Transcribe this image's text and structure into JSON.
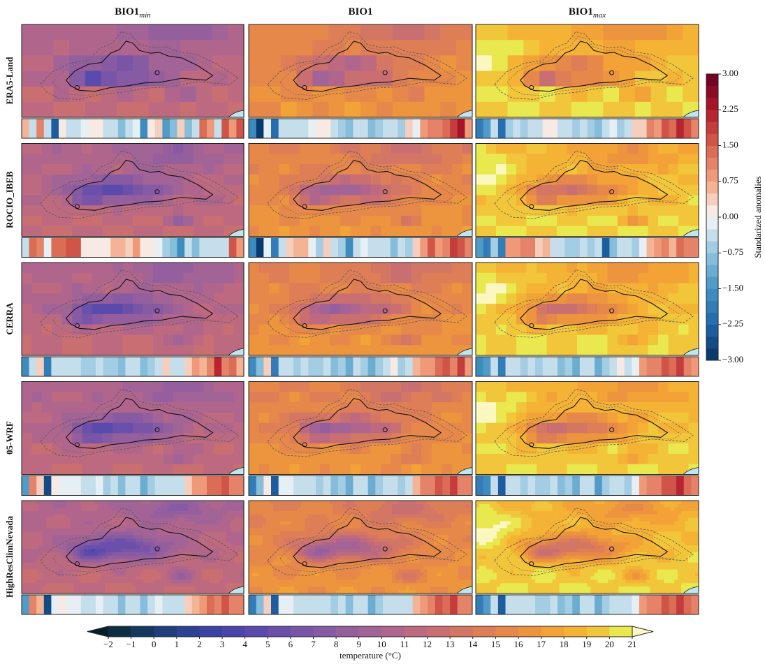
{
  "chart_data": {
    "type": "stripes-grid",
    "columns": [
      {
        "name": "BIO1",
        "subscript": "min"
      },
      {
        "name": "BIO1"
      },
      {
        "name": "BIO1",
        "subscript": "max"
      }
    ],
    "rows": [
      "ERA5-Land",
      "ROCIO_IBEB",
      "CERRA",
      "05-WRF",
      "HighResClimNevada"
    ],
    "panels": [
      [
        {
          "values": [
            0.6,
            -0.4,
            1.2,
            -0.3,
            -2.4,
            0.2,
            -0.3,
            -0.4,
            -0.2,
            0.1,
            0.1,
            -0.5,
            -0.3,
            -1.0,
            -0.4,
            -0.2,
            -1.6,
            0.2,
            0.3,
            -1.3,
            -0.8,
            0.4,
            -1.0,
            -0.4,
            1.4,
            0.9,
            -0.5,
            1.6,
            0.8,
            1.5
          ]
        },
        {
          "values": [
            -1.6,
            -2.8,
            -0.2,
            -2.1,
            -0.3,
            -0.5,
            -0.4,
            -0.3,
            -0.2,
            0.1,
            0.0,
            -0.3,
            -0.6,
            -0.8,
            -0.5,
            -0.4,
            -0.9,
            -0.7,
            -0.3,
            -0.5,
            -0.6,
            0.3,
            -0.2,
            0.8,
            1.2,
            1.0,
            1.4,
            1.8,
            2.3,
            0.9
          ]
        },
        {
          "values": [
            -2.0,
            -1.4,
            -0.5,
            -2.2,
            -0.6,
            -0.4,
            -0.6,
            -0.5,
            -0.3,
            0.2,
            0.1,
            -0.3,
            -0.5,
            -0.7,
            -0.4,
            -0.6,
            -1.0,
            -0.4,
            -0.2,
            -0.6,
            -0.3,
            0.4,
            0.3,
            1.1,
            0.9,
            1.5,
            1.3,
            2.0,
            1.7,
            1.2
          ]
        }
      ],
      [
        {
          "values": [
            -0.4,
            1.3,
            1.1,
            -0.2,
            1.3,
            1.3,
            1.5,
            1.5,
            0.1,
            0.1,
            0.1,
            0.1,
            0.6,
            0.5,
            0.3,
            0.9,
            0.1,
            0.2,
            -0.2,
            -0.6,
            -0.8,
            -1.6,
            -0.3,
            -0.8,
            -0.4,
            -0.3,
            -0.5,
            -0.3,
            1.6,
            0.9
          ]
        },
        {
          "values": [
            -1.7,
            -3.0,
            -0.2,
            -1.9,
            -0.4,
            0.4,
            0.6,
            0.5,
            -0.2,
            -0.6,
            0.3,
            -0.3,
            -0.7,
            -1.7,
            -0.4,
            -0.2,
            -0.3,
            -0.3,
            -0.5,
            -0.9,
            -0.5,
            -0.6,
            0.3,
            0.8,
            1.5,
            0.9,
            1.1,
            1.8,
            1.6,
            1.1
          ]
        },
        {
          "values": [
            -1.5,
            -1.8,
            -0.6,
            -1.9,
            0.8,
            0.9,
            1.1,
            1.1,
            0.3,
            0.6,
            -0.4,
            -0.4,
            -0.6,
            -0.7,
            -0.5,
            -0.6,
            -0.5,
            -2.3,
            -0.9,
            -0.5,
            -0.3,
            -0.7,
            -0.2,
            0.6,
            0.9,
            1.2,
            0.5,
            1.4,
            1.2,
            1.0
          ]
        }
      ],
      [
        {
          "values": [
            -1.6,
            -0.5,
            0.4,
            -1.8,
            -0.3,
            -0.3,
            -0.5,
            -0.3,
            -0.6,
            -0.6,
            -0.4,
            -0.7,
            -0.6,
            -1.0,
            -0.3,
            -0.5,
            -1.0,
            -0.6,
            -0.3,
            0.4,
            -0.5,
            -0.5,
            0.3,
            0.8,
            0.6,
            1.2,
            2.2,
            1.0,
            1.4,
            0.7
          ]
        },
        {
          "values": [
            -1.6,
            -0.8,
            0.3,
            -1.9,
            -0.4,
            -0.3,
            -0.6,
            -0.5,
            -0.7,
            -0.7,
            -0.4,
            -0.9,
            -0.7,
            -1.2,
            -0.5,
            -0.6,
            -1.1,
            -0.7,
            -0.4,
            0.1,
            -0.6,
            -0.3,
            0.5,
            0.9,
            0.9,
            1.4,
            1.6,
            1.2,
            1.9,
            0.9
          ]
        },
        {
          "values": [
            -1.6,
            -1.3,
            -0.5,
            -2.0,
            -0.4,
            -0.3,
            -0.6,
            -0.5,
            -0.6,
            -0.5,
            -0.3,
            -0.8,
            -0.6,
            -1.1,
            -0.4,
            -0.5,
            -1.2,
            -0.6,
            -0.3,
            0.2,
            -0.4,
            -0.2,
            0.8,
            1.0,
            1.0,
            1.5,
            1.4,
            1.9,
            1.0,
            0.8
          ]
        }
      ],
      [
        {
          "values": [
            -1.5,
            1.2,
            0.4,
            -2.6,
            0.0,
            -0.1,
            -0.2,
            -0.1,
            -0.3,
            -0.4,
            -0.2,
            -0.6,
            -0.5,
            -0.9,
            -0.4,
            -0.3,
            -1.1,
            -0.6,
            -0.3,
            -0.4,
            -0.5,
            -0.4,
            0.4,
            0.8,
            0.9,
            1.4,
            1.3,
            1.7,
            1.1,
            1.0
          ]
        },
        {
          "values": [
            -1.9,
            -0.9,
            0.2,
            -2.4,
            -0.2,
            -0.2,
            -0.4,
            -0.3,
            -0.5,
            -0.6,
            -0.3,
            -0.8,
            -0.6,
            -1.1,
            -0.4,
            -0.4,
            -1.2,
            -0.7,
            -0.3,
            -0.4,
            -0.6,
            -0.3,
            0.6,
            1.0,
            1.1,
            1.6,
            1.4,
            1.9,
            1.2,
            1.0
          ]
        },
        {
          "values": [
            -2.0,
            -1.6,
            -0.3,
            -2.5,
            -0.3,
            -0.3,
            -0.6,
            -0.4,
            -0.7,
            -0.6,
            -0.4,
            -0.9,
            -0.7,
            -1.1,
            -0.4,
            -0.5,
            -1.3,
            -0.7,
            -0.4,
            -0.3,
            -0.6,
            -0.2,
            0.9,
            1.2,
            1.2,
            1.7,
            1.5,
            2.0,
            1.3,
            1.1
          ]
        }
      ],
      [
        {
          "values": [
            -1.5,
            1.0,
            0.5,
            -2.7,
            -0.1,
            0.0,
            -0.1,
            -0.2,
            -0.3,
            -0.4,
            -0.2,
            -0.5,
            -0.4,
            -0.8,
            -0.3,
            -0.3,
            -1.0,
            -0.4,
            -0.2,
            -0.3,
            -0.4,
            -0.3,
            0.3,
            0.7,
            0.8,
            1.3,
            1.2,
            1.6,
            1.0,
            1.2
          ]
        },
        {
          "values": [
            -1.8,
            -0.8,
            0.3,
            -2.4,
            -0.1,
            -0.2,
            -0.3,
            -0.3,
            -0.4,
            -0.5,
            -0.3,
            -0.7,
            -0.5,
            -1.0,
            -0.4,
            -0.4,
            -1.1,
            -0.6,
            -0.3,
            -0.3,
            -0.5,
            -0.3,
            0.5,
            0.9,
            1.0,
            1.5,
            1.3,
            1.8,
            1.1,
            1.0
          ]
        },
        {
          "values": [
            -2.0,
            -1.4,
            -0.3,
            -2.5,
            -0.3,
            -0.3,
            -0.5,
            -0.4,
            -0.6,
            -0.6,
            -0.4,
            -0.8,
            -0.6,
            -1.1,
            -0.4,
            -0.5,
            -1.2,
            -0.7,
            -0.4,
            -0.3,
            -0.5,
            -0.2,
            0.8,
            1.1,
            1.2,
            1.6,
            1.4,
            1.9,
            1.3,
            1.1
          ]
        }
      ]
    ],
    "anomaly_colorbar": {
      "label": "Standarized anomalies",
      "ylim": [
        -3,
        3
      ],
      "yticks": [
        {
          "value": -3,
          "label": "−3.00"
        },
        {
          "value": -2.25,
          "label": "−2.25"
        },
        {
          "value": -1.5,
          "label": "−1.50"
        },
        {
          "value": -0.75,
          "label": "−0.75"
        },
        {
          "value": 0,
          "label": "0.00"
        },
        {
          "value": 0.75,
          "label": "0.75"
        },
        {
          "value": 1.5,
          "label": "1.50"
        },
        {
          "value": 2.25,
          "label": "2.25"
        },
        {
          "value": 3,
          "label": "3.00"
        }
      ],
      "step": 0.25,
      "colors": [
        "#053061",
        "#2166ac",
        "#4393c3",
        "#92c5de",
        "#f7f7f7",
        "#f4a582",
        "#d6604d",
        "#b2182b",
        "#67001f"
      ]
    },
    "temperature_colorbar": {
      "label": "temperature (°C)",
      "xlim": [
        -2,
        21
      ],
      "xticks": [
        {
          "value": -2,
          "label": "−2"
        },
        {
          "value": -1,
          "label": "−1"
        },
        0,
        1,
        2,
        3,
        4,
        5,
        6,
        7,
        8,
        9,
        10,
        11,
        12,
        13,
        14,
        15,
        16,
        17,
        18,
        19,
        20,
        21
      ],
      "colors": [
        "#06202a",
        "#0d2f45",
        "#14385e",
        "#1f3f7a",
        "#2b4193",
        "#3a42a3",
        "#4a45aa",
        "#5a4aac",
        "#6a4fab",
        "#7955a8",
        "#875aa4",
        "#955f9e",
        "#a26396",
        "#b0668c",
        "#bd6a80",
        "#c96f72",
        "#d47664",
        "#de7e56",
        "#e68849",
        "#ed943e",
        "#f2a236",
        "#f4b334",
        "#f2c63a",
        "#e9e84e",
        "#fbf7c0"
      ]
    }
  }
}
